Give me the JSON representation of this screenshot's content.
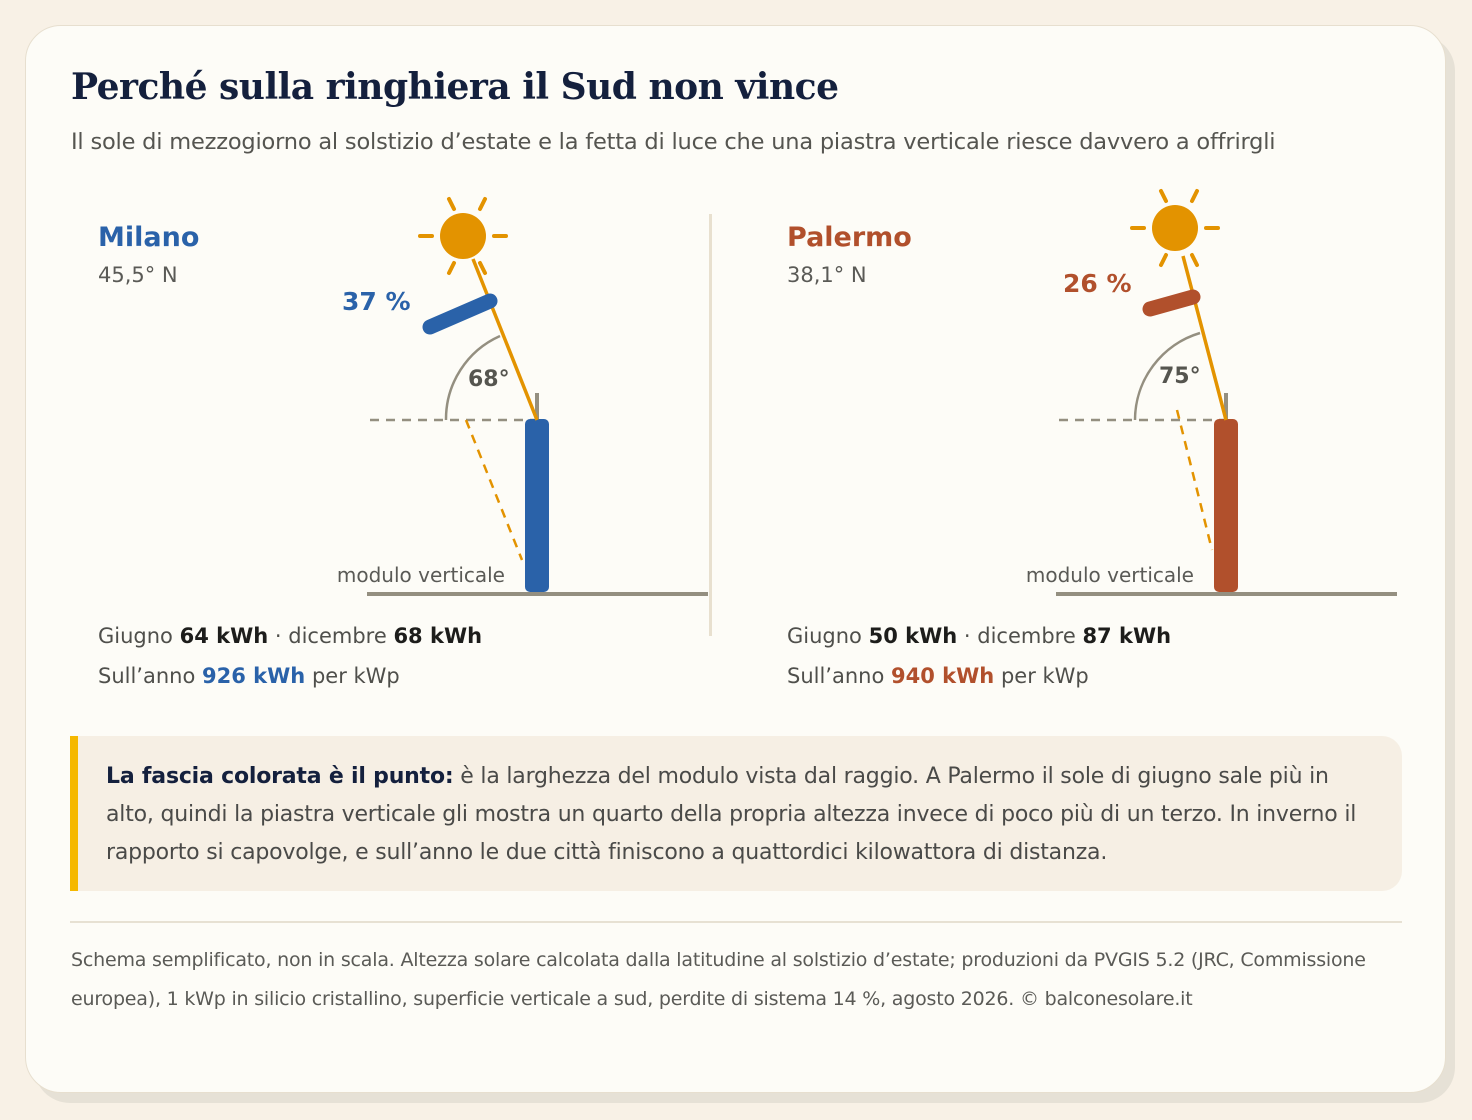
{
  "title": "Perché sulla ringhiera il Sud non vince",
  "subtitle": "Il sole di mezzogiorno al solstizio d’estate e la fetta di luce che una piastra verticale riesce davvero a offrirgli",
  "colors": {
    "milano": "#2a62a9",
    "palermo": "#b1502c",
    "sun": "#e39300",
    "ground": "#948f80",
    "callout_bar": "#f5b800"
  },
  "cities": [
    {
      "name": "Milano",
      "latitude": "45,5° N",
      "fraction_label": "37 %",
      "fraction": 0.37,
      "angle_label": "68°",
      "sun_elevation_deg": 68,
      "module_label": "modulo verticale",
      "june_label": "Giugno",
      "june_value": "64 kWh",
      "sep": " · dicembre ",
      "december_value": "68 kWh",
      "year_label": "Sull’anno",
      "year_value": "926 kWh",
      "year_unit": "per kWp"
    },
    {
      "name": "Palermo",
      "latitude": "38,1° N",
      "fraction_label": "26 %",
      "fraction": 0.26,
      "angle_label": "75°",
      "sun_elevation_deg": 75,
      "module_label": "modulo verticale",
      "june_label": "Giugno",
      "june_value": "50 kWh",
      "sep": " · dicembre ",
      "december_value": "87 kWh",
      "year_label": "Sull’anno",
      "year_value": "940 kWh",
      "year_unit": "per kWp"
    }
  ],
  "callout": {
    "lead": "La fascia colorata è il punto:",
    "text": " è la larghezza del modulo vista dal raggio. A Palermo il sole di giugno sale più in alto, quindi la piastra verticale gli mostra un quarto della propria altezza invece di poco più di un terzo. In inverno il rapporto si capovolge, e sull’anno le due città finiscono a quattordici kilowattora di distanza."
  },
  "footer": "Schema semplificato, non in scala. Altezza solare calcolata dalla latitudine al solstizio d’estate; produzioni da PVGIS 5.2 (JRC, Commissione europea), 1 kWp in silicio cristallino, superficie verticale a sud, perdite di sistema 14 %, agosto 2026. © balconesolare.it"
}
